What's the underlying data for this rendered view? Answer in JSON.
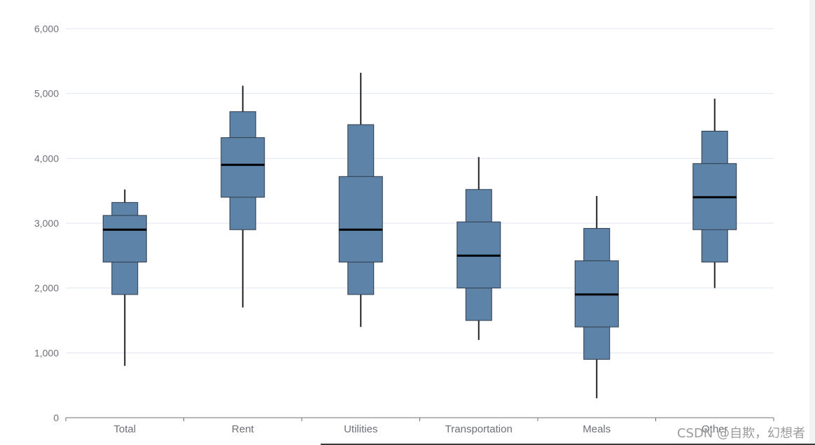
{
  "chart_data": {
    "type": "boxplot",
    "title": "",
    "xlabel": "",
    "ylabel": "",
    "ylim": [
      0,
      6000
    ],
    "yticks": [
      "0",
      "1,000",
      "2,000",
      "3,000",
      "4,000",
      "5,000",
      "6,000"
    ],
    "ytick_values": [
      0,
      1000,
      2000,
      3000,
      4000,
      5000,
      6000
    ],
    "grid": true,
    "categories": [
      "Total",
      "Rent",
      "Utilities",
      "Transportation",
      "Meals",
      "Other"
    ],
    "series": [
      {
        "values": [
          {
            "min": 800,
            "q10": 1900,
            "q25": 2400,
            "median": 2900,
            "q75": 3120,
            "q90": 3320,
            "max": 3520
          },
          {
            "min": 1700,
            "q10": 2900,
            "q25": 3400,
            "median": 3900,
            "q75": 4320,
            "q90": 4720,
            "max": 5120
          },
          {
            "min": 1400,
            "q10": 1900,
            "q25": 2400,
            "median": 2900,
            "q75": 3720,
            "q90": 4520,
            "max": 5320
          },
          {
            "min": 1200,
            "q10": 1500,
            "q25": 2000,
            "median": 2500,
            "q75": 3020,
            "q90": 3520,
            "max": 4020
          },
          {
            "min": 300,
            "q10": 900,
            "q25": 1400,
            "median": 1900,
            "q75": 2420,
            "q90": 2920,
            "max": 3420
          },
          {
            "min": 2000,
            "q10": 2400,
            "q25": 2900,
            "median": 3400,
            "q75": 3920,
            "q90": 4420,
            "max": 4920
          }
        ]
      }
    ],
    "colors": {
      "box_fill": "#5e83a8",
      "box_stroke": "#2f3b4a",
      "median": "#000000",
      "whisker": "#222222",
      "grid": "#e0e6f1",
      "axis": "#6e7079"
    }
  },
  "watermark": "CSDN @自欺，幻想者"
}
